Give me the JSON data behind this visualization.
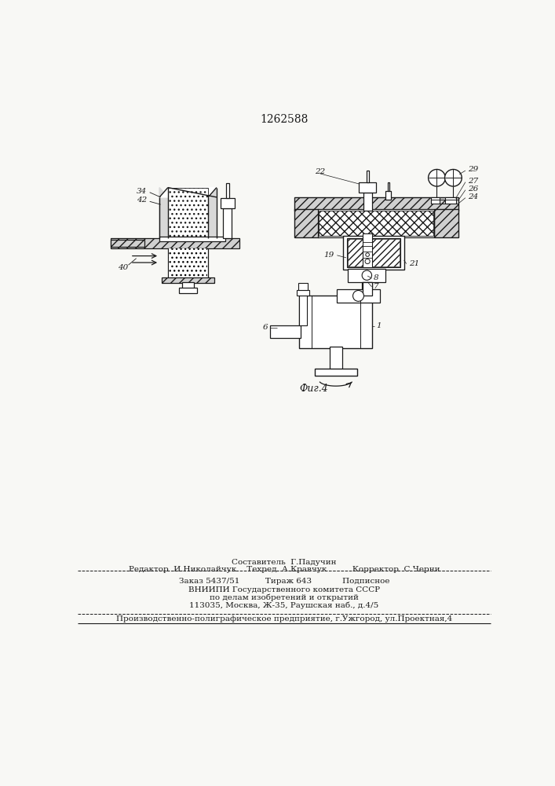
{
  "title": "1262588",
  "bg_color": "#f8f8f5",
  "lc": "#1a1a1a",
  "footer": {
    "l1": "Составитель  Г.Падучин",
    "l2": "Редактор  И.Николайчук    Техред  А.Кравчук          Корректор  С.Черни",
    "l3": "Заказ 5437/51          Тираж 643            Подписное",
    "l4": "ВНИИПИ Государственного комитета СССР",
    "l5": "по делам изобретений и открытий",
    "l6": "113035, Москва, Ж-35, Раушская наб., д.4/5",
    "l7": "Производственно-полиграфическое предприятие, г.Ужгород, ул.Проектная,4"
  }
}
